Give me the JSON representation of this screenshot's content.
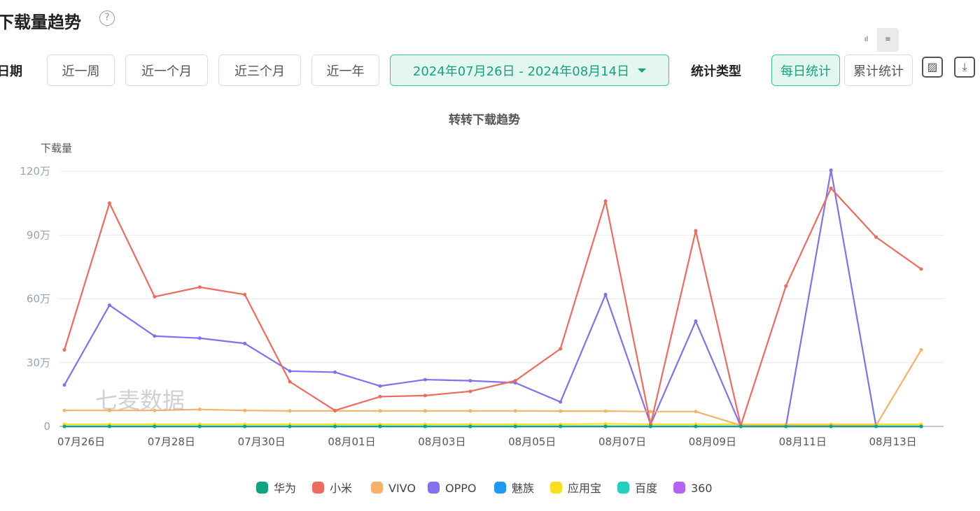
{
  "header": {
    "title": "下载量趋势",
    "help_icon": "?"
  },
  "filters": {
    "date_label": "日期",
    "ranges": [
      "近一周",
      "近一个月",
      "近三个月",
      "近一年"
    ],
    "date_range": "2024年07月26日 - 2024年08月14日",
    "stat_type_label": "统计类型",
    "stat_types": [
      "每日统计",
      "累计统计"
    ]
  },
  "toolbar": {
    "save_image": "▨",
    "download": "⤓"
  },
  "watermark": "七麦数据",
  "chart_data": {
    "type": "line",
    "title": "转转下载趋势",
    "ylabel": "下载量",
    "ylim": [
      0,
      120
    ],
    "yticks": [
      "0",
      "30万",
      "60万",
      "90万",
      "120万"
    ],
    "yticks_values": [
      0,
      30,
      60,
      90,
      120
    ],
    "x": [
      "07月26日",
      "07月27日",
      "07月28日",
      "07月29日",
      "07月30日",
      "07月31日",
      "08月01日",
      "08月02日",
      "08月03日",
      "08月04日",
      "08月05日",
      "08月06日",
      "08月07日",
      "08月08日",
      "08月09日",
      "08月10日",
      "08月11日",
      "08月12日",
      "08月13日",
      "08月14日"
    ],
    "xtick_every": 2,
    "legend_position": "bottom",
    "series": [
      {
        "name": "华为",
        "color": "#0fa37f",
        "values": [
          0,
          0,
          0,
          0,
          0,
          0,
          0,
          0,
          0,
          0,
          0,
          0,
          0,
          0,
          0,
          0,
          0,
          0,
          0,
          0
        ]
      },
      {
        "name": "小米",
        "color": "#ee6b5f",
        "values": [
          36,
          105,
          61,
          65.5,
          62,
          21,
          7.5,
          14,
          14.5,
          16.5,
          21.5,
          36.5,
          106,
          1,
          92,
          0.5,
          66,
          112,
          89,
          74
        ]
      },
      {
        "name": "VIVO",
        "color": "#f7b267",
        "values": [
          7.5,
          7.5,
          7.5,
          8,
          7.5,
          7.3,
          7.3,
          7.3,
          7.3,
          7.3,
          7.3,
          7.2,
          7.2,
          7,
          7,
          0.5,
          0.5,
          0.5,
          0.5,
          36
        ]
      },
      {
        "name": "OPPO",
        "color": "#8170f0",
        "values": [
          19.5,
          57,
          42.5,
          41.5,
          39,
          26,
          25.5,
          19,
          22,
          21.5,
          20.5,
          11.5,
          62,
          1,
          49.5,
          0,
          0,
          120.5,
          0,
          0
        ]
      },
      {
        "name": "魅族",
        "color": "#1e9af0",
        "values": [
          0,
          0,
          0,
          0,
          0,
          0,
          0,
          0,
          0,
          0,
          0,
          0,
          0,
          0,
          0,
          0,
          0,
          0,
          0,
          0
        ]
      },
      {
        "name": "应用宝",
        "color": "#f9de1a",
        "values": [
          1,
          1,
          1,
          1,
          1,
          1,
          1,
          1,
          1,
          1,
          1,
          1,
          1.2,
          1,
          1,
          1,
          1,
          1,
          1,
          1
        ]
      },
      {
        "name": "百度",
        "color": "#21d0bf",
        "values": [
          0,
          0,
          0,
          0,
          0,
          0,
          0,
          0,
          0,
          0,
          0,
          0,
          0,
          0,
          0,
          0,
          0,
          0,
          0,
          0
        ]
      },
      {
        "name": "360",
        "color": "#b763f2",
        "values": [
          0,
          0,
          0,
          0,
          0,
          0,
          0,
          0,
          0,
          0,
          0,
          0,
          0,
          0,
          0,
          0,
          0,
          0,
          0,
          0
        ]
      }
    ]
  }
}
